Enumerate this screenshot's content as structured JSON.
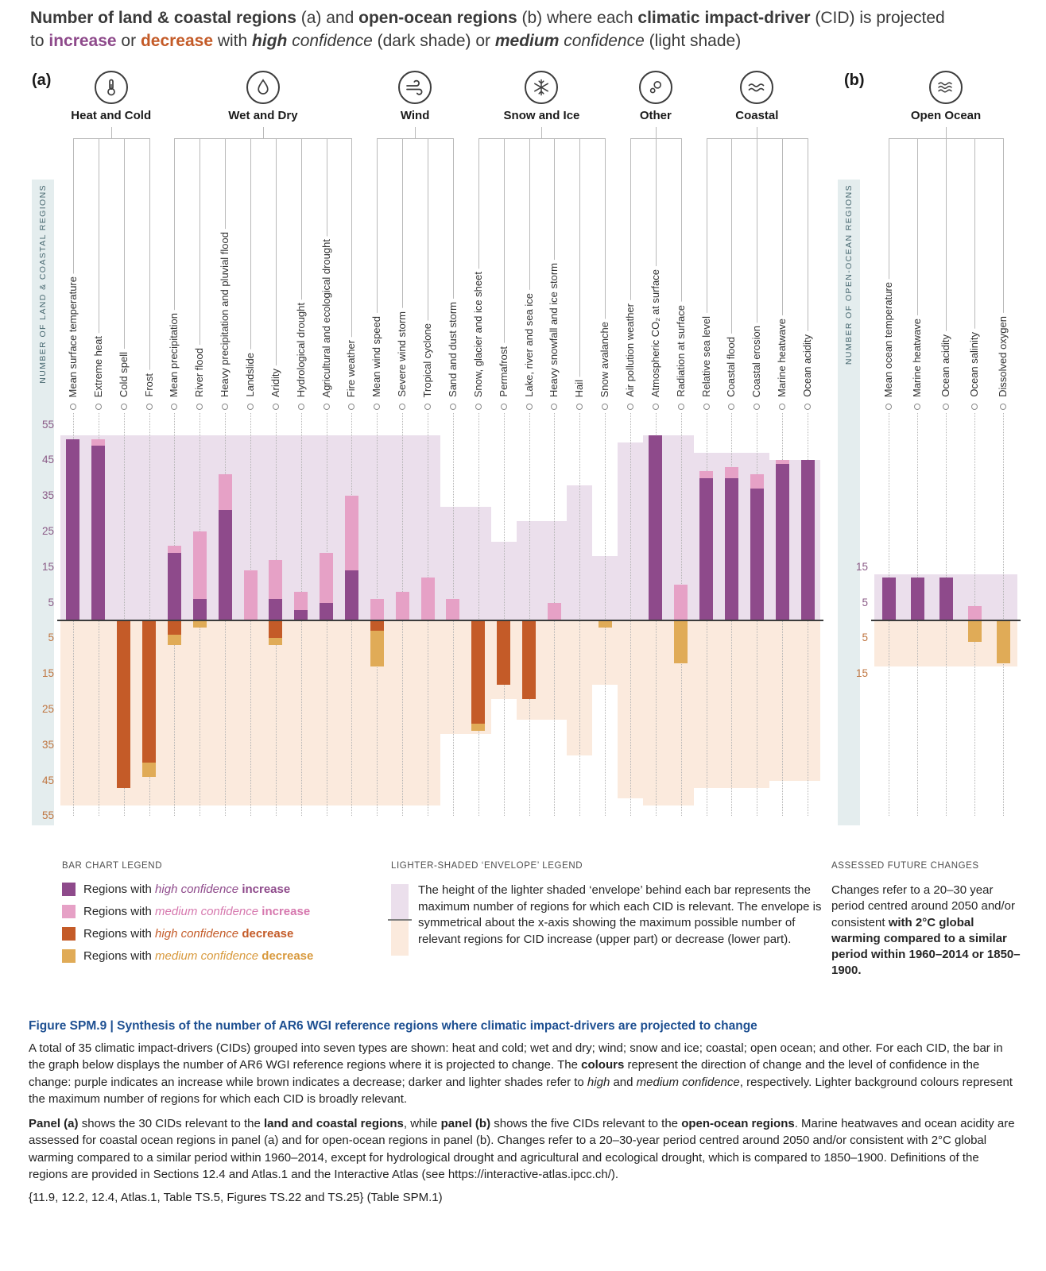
{
  "title": {
    "runs": [
      {
        "t": "Number of land & coastal regions",
        "c": "b"
      },
      {
        "t": " (a) and ",
        "c": ""
      },
      {
        "t": "open-ocean regions",
        "c": "b"
      },
      {
        "t": " (b) where each ",
        "c": ""
      },
      {
        "t": "climatic impact-driver",
        "c": "b"
      },
      {
        "t": " (CID) is projected\nto ",
        "c": ""
      },
      {
        "t": "increase",
        "c": "b purple"
      },
      {
        "t": " or ",
        "c": ""
      },
      {
        "t": "decrease",
        "c": "b orange"
      },
      {
        "t": " with ",
        "c": ""
      },
      {
        "t": "high",
        "c": "bi"
      },
      {
        "t": " confidence",
        "c": "i"
      },
      {
        "t": " (dark shade) or ",
        "c": ""
      },
      {
        "t": "medium",
        "c": "bi"
      },
      {
        "t": " confidence",
        "c": "i"
      },
      {
        "t": " (light shade)",
        "c": ""
      }
    ]
  },
  "panel_a_label": "(a)",
  "panel_b_label": "(b)",
  "chart_data": {
    "type": "bar",
    "note": "Stacked diverging bars: values are numbers of regions; envelope = max relevant regions, symmetric about x-axis",
    "colors": {
      "inc_high": "#8e4a8b",
      "inc_med": "#e6a1c6",
      "dec_high": "#c45b28",
      "dec_med": "#e0ab57",
      "env_up": "#ebdfec",
      "env_down": "#fbeadd",
      "axis_strip": "#e4edee"
    },
    "panels": [
      {
        "id": "a",
        "axis_label": "NUMBER OF LAND & COASTAL REGIONS",
        "yticks": [
          55,
          45,
          35,
          25,
          15,
          5
        ],
        "groups": [
          {
            "name": "Heat and Cold",
            "icon": "thermometer-icon",
            "cids": [
              {
                "label": "Mean surface temperature",
                "envelope": 52,
                "inc_high": 51,
                "inc_med": 0,
                "dec_high": 0,
                "dec_med": 0
              },
              {
                "label": "Extreme heat",
                "envelope": 52,
                "inc_high": 49,
                "inc_med": 2,
                "dec_high": 0,
                "dec_med": 0
              },
              {
                "label": "Cold spell",
                "envelope": 52,
                "inc_high": 0,
                "inc_med": 0,
                "dec_high": 47,
                "dec_med": 0
              },
              {
                "label": "Frost",
                "envelope": 52,
                "inc_high": 0,
                "inc_med": 0,
                "dec_high": 40,
                "dec_med": 4
              }
            ]
          },
          {
            "name": "Wet and Dry",
            "icon": "droplet-icon",
            "cids": [
              {
                "label": "Mean precipitation",
                "envelope": 52,
                "inc_high": 19,
                "inc_med": 2,
                "dec_high": 4,
                "dec_med": 3
              },
              {
                "label": "River flood",
                "envelope": 52,
                "inc_high": 6,
                "inc_med": 19,
                "dec_high": 0,
                "dec_med": 2
              },
              {
                "label": "Heavy precipitation and pluvial flood",
                "envelope": 52,
                "inc_high": 31,
                "inc_med": 10,
                "dec_high": 0,
                "dec_med": 0
              },
              {
                "label": "Landslide",
                "envelope": 52,
                "inc_high": 0,
                "inc_med": 14,
                "dec_high": 0,
                "dec_med": 0
              },
              {
                "label": "Aridity",
                "envelope": 52,
                "inc_high": 6,
                "inc_med": 11,
                "dec_high": 5,
                "dec_med": 2
              },
              {
                "label": "Hydrological drought",
                "envelope": 52,
                "inc_high": 3,
                "inc_med": 5,
                "dec_high": 0,
                "dec_med": 0
              },
              {
                "label": "Agricultural and ecological drought",
                "envelope": 52,
                "inc_high": 5,
                "inc_med": 14,
                "dec_high": 0,
                "dec_med": 0
              },
              {
                "label": "Fire weather",
                "envelope": 52,
                "inc_high": 14,
                "inc_med": 21,
                "dec_high": 0,
                "dec_med": 0
              }
            ]
          },
          {
            "name": "Wind",
            "icon": "wind-icon",
            "cids": [
              {
                "label": "Mean wind speed",
                "envelope": 52,
                "inc_high": 0,
                "inc_med": 6,
                "dec_high": 3,
                "dec_med": 10
              },
              {
                "label": "Severe wind storm",
                "envelope": 52,
                "inc_high": 0,
                "inc_med": 8,
                "dec_high": 0,
                "dec_med": 0
              },
              {
                "label": "Tropical cyclone",
                "envelope": 52,
                "inc_high": 0,
                "inc_med": 12,
                "dec_high": 0,
                "dec_med": 0
              },
              {
                "label": "Sand and dust storm",
                "envelope": 32,
                "inc_high": 0,
                "inc_med": 6,
                "dec_high": 0,
                "dec_med": 0
              }
            ]
          },
          {
            "name": "Snow and Ice",
            "icon": "snowflake-icon",
            "cids": [
              {
                "label": "Snow, glacier and ice sheet",
                "envelope": 32,
                "inc_high": 0,
                "inc_med": 0,
                "dec_high": 29,
                "dec_med": 2
              },
              {
                "label": "Permafrost",
                "envelope": 22,
                "inc_high": 0,
                "inc_med": 0,
                "dec_high": 18,
                "dec_med": 0
              },
              {
                "label": "Lake, river and sea ice",
                "envelope": 28,
                "inc_high": 0,
                "inc_med": 0,
                "dec_high": 22,
                "dec_med": 0
              },
              {
                "label": "Heavy snowfall and ice storm",
                "envelope": 28,
                "inc_high": 0,
                "inc_med": 5,
                "dec_high": 0,
                "dec_med": 0
              },
              {
                "label": "Hail",
                "envelope": 38,
                "inc_high": 0,
                "inc_med": 0,
                "dec_high": 0,
                "dec_med": 0
              },
              {
                "label": "Snow avalanche",
                "envelope": 18,
                "inc_high": 0,
                "inc_med": 0,
                "dec_high": 0,
                "dec_med": 2
              }
            ]
          },
          {
            "name": "Other",
            "icon": "molecule-icon",
            "cids": [
              {
                "label": "Air pollution weather",
                "envelope": 50,
                "inc_high": 0,
                "inc_med": 0,
                "dec_high": 0,
                "dec_med": 0
              },
              {
                "label": "Atmospheric CO₂ at surface",
                "envelope": 52,
                "inc_high": 52,
                "inc_med": 0,
                "dec_high": 0,
                "dec_med": 0
              },
              {
                "label": "Radiation at surface",
                "envelope": 52,
                "inc_high": 0,
                "inc_med": 10,
                "dec_high": 0,
                "dec_med": 12
              }
            ]
          },
          {
            "name": "Coastal",
            "icon": "coastal-waves-icon",
            "cids": [
              {
                "label": "Relative sea level",
                "envelope": 47,
                "inc_high": 40,
                "inc_med": 2,
                "dec_high": 0,
                "dec_med": 0
              },
              {
                "label": "Coastal flood",
                "envelope": 47,
                "inc_high": 40,
                "inc_med": 3,
                "dec_high": 0,
                "dec_med": 0
              },
              {
                "label": "Coastal erosion",
                "envelope": 47,
                "inc_high": 37,
                "inc_med": 4,
                "dec_high": 0,
                "dec_med": 0
              },
              {
                "label": "Marine heatwave",
                "envelope": 45,
                "inc_high": 44,
                "inc_med": 1,
                "dec_high": 0,
                "dec_med": 0
              },
              {
                "label": "Ocean acidity",
                "envelope": 45,
                "inc_high": 45,
                "inc_med": 0,
                "dec_high": 0,
                "dec_med": 0
              }
            ]
          }
        ]
      },
      {
        "id": "b",
        "axis_label": "NUMBER OF OPEN-OCEAN REGIONS",
        "yticks": [
          15,
          5
        ],
        "groups": [
          {
            "name": "Open Ocean",
            "icon": "ocean-waves-icon",
            "cids": [
              {
                "label": "Mean ocean temperature",
                "envelope": 13,
                "inc_high": 12,
                "inc_med": 0,
                "dec_high": 0,
                "dec_med": 0
              },
              {
                "label": "Marine heatwave",
                "envelope": 13,
                "inc_high": 12,
                "inc_med": 0,
                "dec_high": 0,
                "dec_med": 0
              },
              {
                "label": "Ocean acidity",
                "envelope": 13,
                "inc_high": 12,
                "inc_med": 0,
                "dec_high": 0,
                "dec_med": 0
              },
              {
                "label": "Ocean salinity",
                "envelope": 13,
                "inc_high": 0,
                "inc_med": 4,
                "dec_high": 0,
                "dec_med": 6
              },
              {
                "label": "Dissolved oxygen",
                "envelope": 13,
                "inc_high": 0,
                "inc_med": 0,
                "dec_high": 0,
                "dec_med": 12
              }
            ]
          }
        ]
      }
    ]
  },
  "legend": {
    "bar_heading": "BAR CHART LEGEND",
    "items": [
      {
        "color": "#8e4a8b",
        "runs": [
          {
            "t": "Regions with ",
            "c": ""
          },
          {
            "t": "high confidence",
            "c": "i purple"
          },
          {
            "t": " ",
            "c": ""
          },
          {
            "t": "increase",
            "c": "b purple"
          }
        ]
      },
      {
        "color": "#e6a1c6",
        "runs": [
          {
            "t": "Regions with ",
            "c": ""
          },
          {
            "t": "medium confidence",
            "c": "i pinkc"
          },
          {
            "t": " ",
            "c": ""
          },
          {
            "t": "increase",
            "c": "b pinkc"
          }
        ]
      },
      {
        "color": "#c45b28",
        "runs": [
          {
            "t": "Regions with ",
            "c": ""
          },
          {
            "t": "high confidence",
            "c": "i orange"
          },
          {
            "t": " ",
            "c": ""
          },
          {
            "t": "decrease",
            "c": "b orange"
          }
        ]
      },
      {
        "color": "#e0ab57",
        "runs": [
          {
            "t": "Regions with ",
            "c": ""
          },
          {
            "t": "medium confidence",
            "c": "i goldc"
          },
          {
            "t": " ",
            "c": ""
          },
          {
            "t": "decrease",
            "c": "b goldc"
          }
        ]
      }
    ],
    "envelope_heading": "LIGHTER-SHADED ‘ENVELOPE’ LEGEND",
    "envelope_text": "The height of the lighter shaded ‘envelope’ behind each bar represents the maximum number of regions for which each CID is relevant. The envelope is symmetrical about the x-axis showing the maximum possible number of relevant regions for CID increase (upper part) or decrease (lower part).",
    "assessed_heading": "ASSESSED FUTURE CHANGES",
    "assessed_runs": [
      {
        "t": "Changes refer to a 20–30 year period centred around 2050 and/or consistent ",
        "c": ""
      },
      {
        "t": "with 2°C global warming compared to a similar period within 1960–2014 or 1850–1900.",
        "c": "b"
      }
    ]
  },
  "caption": {
    "heading": "Figure SPM.9 | Synthesis of the number of AR6 WGI reference regions where climatic impact-drivers are projected to change",
    "para1_runs": [
      {
        "t": "A total of 35 climatic impact-drivers (CIDs) grouped into seven types are shown: heat and cold; wet and dry; wind; snow and ice; coastal; open ocean; and other. For each CID, the bar in the graph below displays the number of AR6 WGI reference regions where it is projected to change. The ",
        "c": ""
      },
      {
        "t": "colours",
        "c": "b"
      },
      {
        "t": " represent the direction of change and the level of confidence in the change: purple indicates an increase while brown indicates a decrease; darker and lighter shades refer to ",
        "c": ""
      },
      {
        "t": "high",
        "c": "i"
      },
      {
        "t": " and ",
        "c": ""
      },
      {
        "t": "medium confidence",
        "c": "i"
      },
      {
        "t": ", respectively. Lighter background colours represent the maximum number of regions for which each CID is broadly relevant.",
        "c": ""
      }
    ],
    "para2_runs": [
      {
        "t": "Panel (a)",
        "c": "b"
      },
      {
        "t": " shows the 30 CIDs relevant to the ",
        "c": ""
      },
      {
        "t": "land and coastal regions",
        "c": "b"
      },
      {
        "t": ", while ",
        "c": ""
      },
      {
        "t": "panel (b)",
        "c": "b"
      },
      {
        "t": " shows the five CIDs relevant to the ",
        "c": ""
      },
      {
        "t": "open-ocean regions",
        "c": "b"
      },
      {
        "t": ". Marine heatwaves and ocean acidity are assessed for coastal ocean regions in panel (a) and for open-ocean regions in panel (b). Changes refer to a 20–30-year period centred around 2050 and/or consistent with 2°C global warming compared to a similar period within 1960–2014, except for hydrological drought and agricultural and ecological drought, which is compared to 1850–1900. Definitions of the regions are provided in Sections 12.4 and Atlas.1 and the Interactive Atlas (see https://interactive-atlas.ipcc.ch/).",
        "c": ""
      }
    ],
    "refs": "{11.9, 12.2, 12.4, Atlas.1, Table TS.5, Figures TS.22 and TS.25} (Table SPM.1)"
  }
}
